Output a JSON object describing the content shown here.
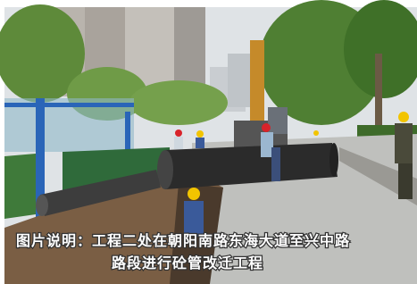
{
  "caption": {
    "lines": [
      "图片说明：工程二处在朝阳南路东海大道至兴中路",
      "路段进行砼管改迁工程"
    ]
  }
}
